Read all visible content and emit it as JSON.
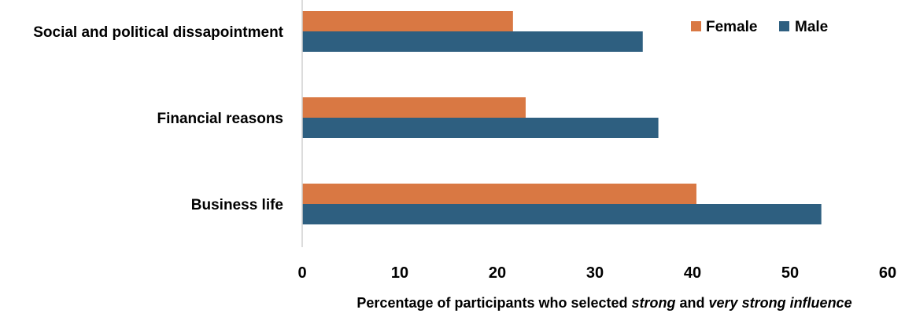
{
  "chart_data": {
    "type": "bar",
    "orientation": "horizontal",
    "categories": [
      "Social and political dissapointment",
      "Financial reasons",
      "Business life"
    ],
    "series": [
      {
        "name": "Female",
        "color": "#D97843",
        "values": [
          21.6,
          22.9,
          40.4
        ]
      },
      {
        "name": "Male",
        "color": "#2E5F80",
        "values": [
          34.9,
          36.5,
          53.2
        ]
      }
    ],
    "xlim": [
      0,
      60
    ],
    "xticks": [
      0,
      10,
      20,
      30,
      40,
      50,
      60
    ],
    "xlabel": {
      "part1": "Percentage of participants who selected ",
      "em1": "strong",
      "part2": " and ",
      "em2": "very strong influence"
    },
    "ylabel": "",
    "title": "",
    "grid": false,
    "legend_position": "top-right"
  }
}
